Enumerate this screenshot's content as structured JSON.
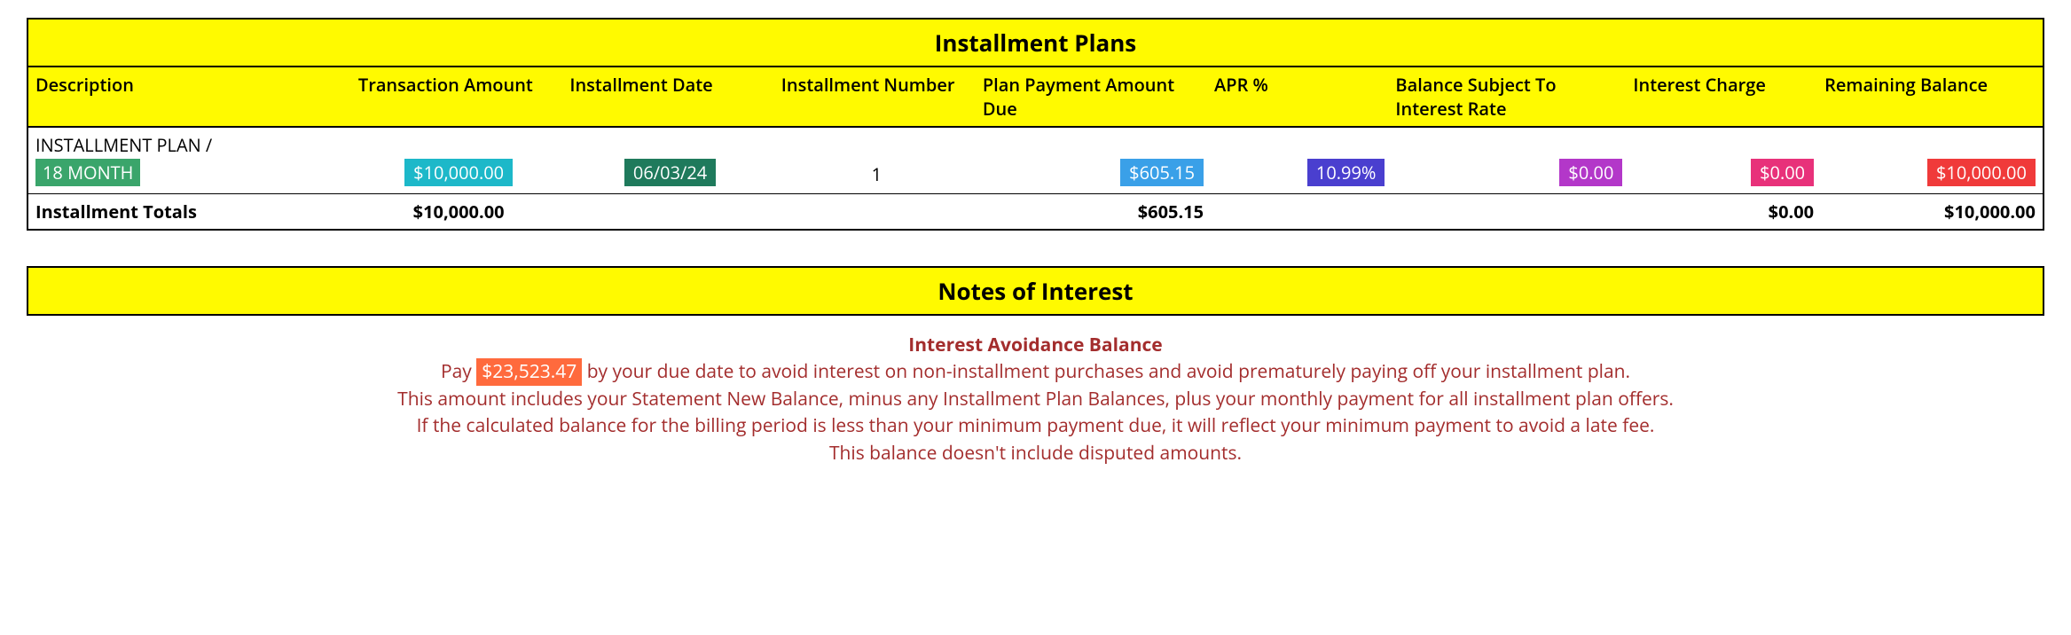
{
  "colors": {
    "title_bg": "#fffa00",
    "border": "#000000",
    "text": "#000000",
    "notes_red": "#a32d2d",
    "desc_highlight_bg": "#3aa56b",
    "trans_highlight_bg": "#1db8c9",
    "date_highlight_bg": "#1f7a5c",
    "due_highlight_bg": "#3aa0e8",
    "apr_highlight_bg": "#4a3fcf",
    "bal_highlight_bg": "#b337c9",
    "int_highlight_bg": "#e8317a",
    "rem_highlight_bg": "#f03a3a",
    "pay_highlight_bg": "#ff6a3d"
  },
  "installment": {
    "title": "Installment Plans",
    "headers": {
      "description": "Description",
      "transaction": "Transaction Amount",
      "date": "Installment Date",
      "number": "Installment Number",
      "due": "Plan Payment Amount Due",
      "apr": "APR %",
      "balance": "Balance Subject To Interest Rate",
      "interest": "Interest Charge",
      "remaining": "Remaining Balance"
    },
    "row": {
      "desc_line1": "INSTALLMENT PLAN /",
      "desc_line2": "18 MONTH",
      "transaction": "$10,000.00",
      "date": "06/03/24",
      "number": "1",
      "due": "$605.15",
      "apr": "10.99%",
      "balance": "$0.00",
      "interest": "$0.00",
      "remaining": "$10,000.00"
    },
    "totals": {
      "label": "Installment Totals",
      "transaction": "$10,000.00",
      "due": "$605.15",
      "interest": "$0.00",
      "remaining": "$10,000.00"
    }
  },
  "notes": {
    "title": "Notes of Interest",
    "subtitle": "Interest Avoidance Balance",
    "pay_prefix": "Pay ",
    "pay_amount": "$23,523.47",
    "pay_suffix": " by your due date to avoid interest on non-installment purchases and avoid prematurely paying off your installment plan.",
    "line2": "This amount includes your Statement New Balance, minus any Installment Plan Balances, plus your monthly payment for all installment plan offers.",
    "line3": "If the calculated balance for the billing period is less than your minimum payment due, it will reflect your minimum payment to avoid a late fee.",
    "line4": "This balance doesn't include disputed amounts."
  }
}
